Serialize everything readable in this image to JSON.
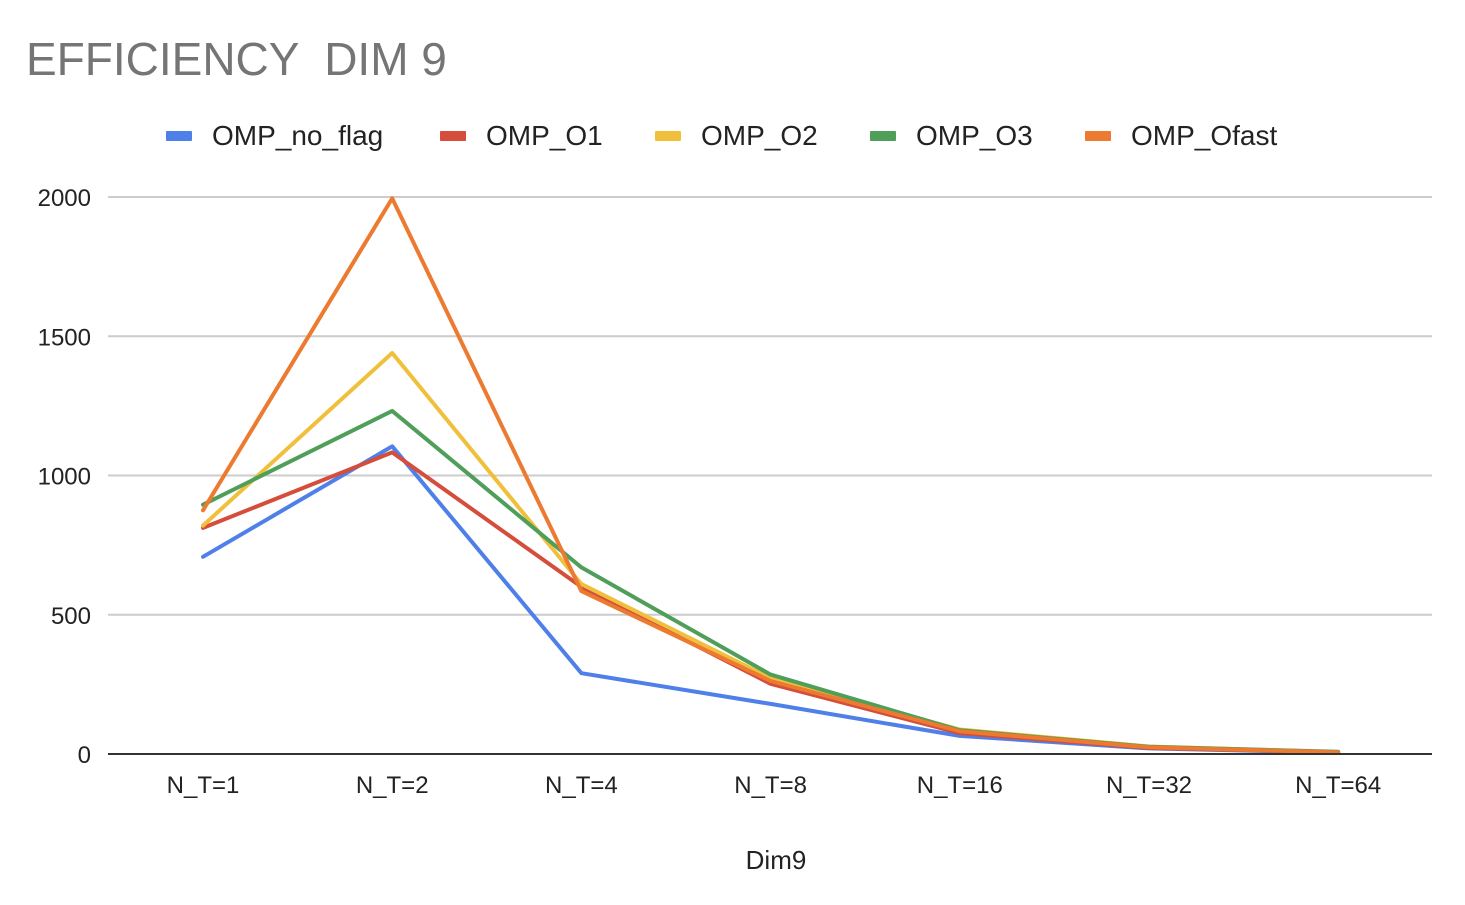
{
  "chart_data": {
    "type": "line",
    "title": "EFFICIENCY  DIM 9",
    "xlabel": "Dim9",
    "ylabel": "",
    "categories": [
      "N_T=1",
      "N_T=2",
      "N_T=4",
      "N_T=8",
      "N_T=16",
      "N_T=32",
      "N_T=64"
    ],
    "ylim": [
      0,
      2000
    ],
    "yticks": [
      "0",
      "500",
      "1000",
      "1500",
      "2000"
    ],
    "grid": true,
    "legend_position": "top",
    "series": [
      {
        "name": "OMP_no_flag",
        "color": "#4f7fe8",
        "values": [
          708,
          1105,
          290,
          180,
          65,
          20,
          5
        ]
      },
      {
        "name": "OMP_O1",
        "color": "#d54d3b",
        "values": [
          812,
          1083,
          600,
          252,
          75,
          22,
          6
        ]
      },
      {
        "name": "OMP_O2",
        "color": "#f0c03c",
        "values": [
          820,
          1440,
          610,
          272,
          88,
          27,
          7
        ]
      },
      {
        "name": "OMP_O3",
        "color": "#4f9e59",
        "values": [
          895,
          1232,
          670,
          285,
          85,
          26,
          8
        ]
      },
      {
        "name": "OMP_Ofast",
        "color": "#ec7a31",
        "values": [
          875,
          1995,
          585,
          262,
          82,
          24,
          6
        ]
      }
    ]
  }
}
